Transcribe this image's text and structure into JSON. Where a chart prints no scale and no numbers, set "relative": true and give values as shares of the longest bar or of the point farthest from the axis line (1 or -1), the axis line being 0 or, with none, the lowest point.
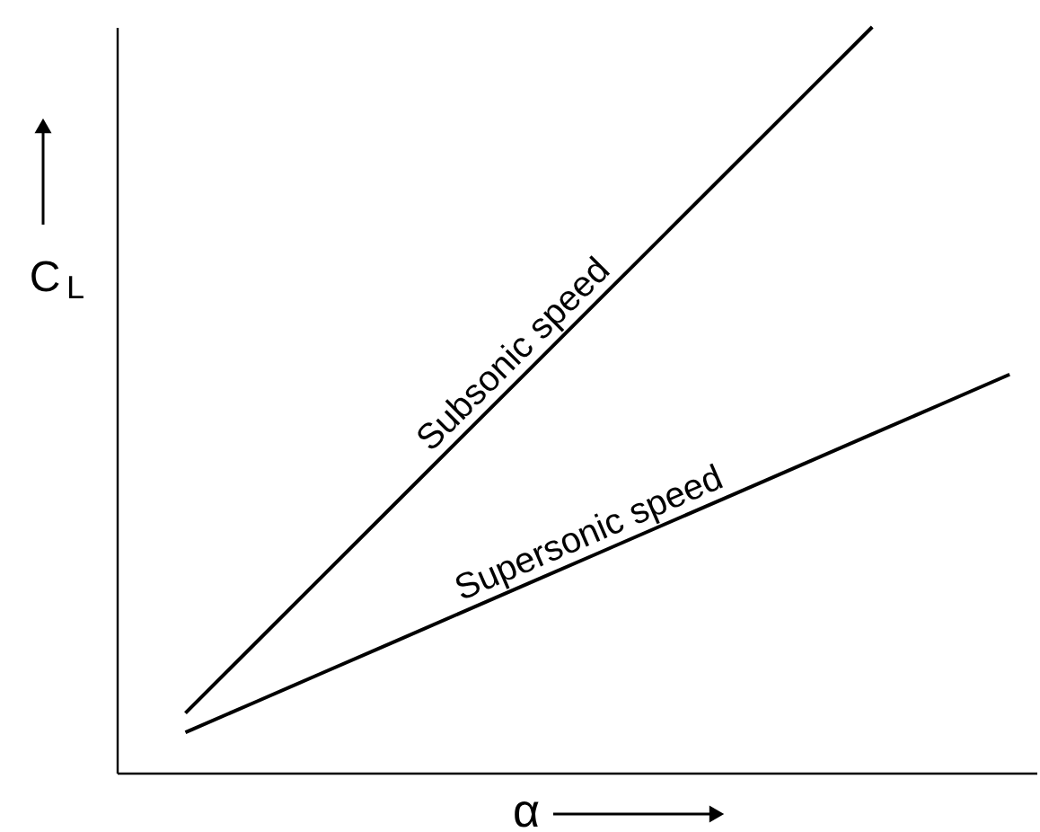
{
  "chart_data": {
    "type": "line",
    "relative": true,
    "xlabel": "α",
    "ylabel": "C$_{L}$",
    "grid": false,
    "marker": "none",
    "line_style": "solid",
    "categories": [
      null,
      null,
      null,
      null,
      null,
      null,
      null,
      null,
      null,
      null,
      null,
      null,
      null,
      null
    ],
    "series": [
      {
        "name": "Subsonic speed",
        "color": "#000000",
        "values": [
          null,
          0.08,
          0.172,
          0.264,
          0.356,
          0.448,
          0.54,
          0.632,
          0.724,
          0.816,
          0.908,
          1.0,
          null,
          null
        ]
      },
      {
        "name": "Supersonic speed",
        "color": "#000000",
        "values": [
          null,
          0.054,
          0.094,
          0.134,
          0.174,
          0.214,
          0.254,
          0.294,
          0.334,
          0.374,
          0.414,
          0.454,
          0.494,
          0.534
        ]
      }
    ]
  }
}
